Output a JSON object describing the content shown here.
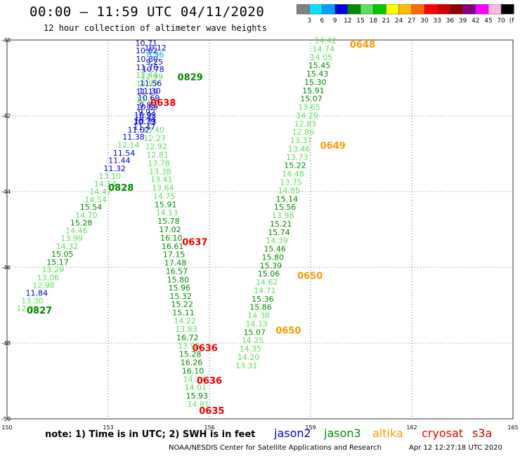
{
  "header": {
    "title": "00:00 – 11:59 UTC 04/11/2020",
    "subtitle": "12 hour collection of altimeter wave heights"
  },
  "colorbar": {
    "colors": [
      "#808080",
      "#00e5ff",
      "#00a0ff",
      "#0000e0",
      "#008b00",
      "#5de05d",
      "#00c800",
      "#ffff00",
      "#ffbb00",
      "#ff6a00",
      "#ff0000",
      "#c80000",
      "#8b0000",
      "#800080",
      "#ff00ff",
      "#ffb6e6",
      "#000000"
    ],
    "labels": [
      "3",
      "6",
      "9",
      "12",
      "15",
      "18",
      "21",
      "24",
      "27",
      "30",
      "33",
      "36",
      "39",
      "42",
      "45",
      "70",
      "(ft)"
    ]
  },
  "chart_data": {
    "type": "scatter",
    "xlim": [
      150,
      165
    ],
    "ylim": [
      -50,
      -40
    ],
    "xticks": [
      150,
      153,
      156,
      159,
      162,
      165
    ],
    "yticks": [
      -40,
      -42,
      -44,
      -46,
      -48,
      -50
    ],
    "xtick_labels": [
      "150",
      "153",
      "156",
      "159",
      "162",
      "165"
    ],
    "ytick_labels": [
      "-40",
      "-42",
      "-44",
      "-46",
      "-48",
      "-50"
    ],
    "grid": true,
    "legend": [
      {
        "name": "jason2",
        "color": "#0000cc"
      },
      {
        "name": "jason3",
        "color": "#008b00"
      },
      {
        "name": "altika",
        "color": "#ff9900"
      },
      {
        "name": "cryosat",
        "color": "#ee0000"
      },
      {
        "name": "s3a",
        "color": "#cc0000"
      }
    ],
    "points": [
      {
        "lon": 154.13,
        "lat": -40.08,
        "v": "10.71",
        "c": "#0000cc"
      },
      {
        "lon": 154.14,
        "lat": -40.28,
        "v": "10.62",
        "c": "#0000cc"
      },
      {
        "lon": 154.15,
        "lat": -40.5,
        "v": "10.80",
        "c": "#0000cc"
      },
      {
        "lon": 154.15,
        "lat": -40.72,
        "v": "11.76",
        "c": "#0000cc"
      },
      {
        "lon": 154.14,
        "lat": -40.93,
        "v": "12.44",
        "c": "#5de05d"
      },
      {
        "lon": 154.15,
        "lat": -41.15,
        "v": "14.93",
        "c": "#5de05d"
      },
      {
        "lon": 154.15,
        "lat": -41.36,
        "v": "11.19",
        "c": "#0000cc"
      },
      {
        "lon": 154.15,
        "lat": -41.57,
        "v": "12.34",
        "c": "#5de05d"
      },
      {
        "lon": 154.15,
        "lat": -41.77,
        "v": "10.89",
        "c": "#0000cc"
      },
      {
        "lon": 154.1,
        "lat": -41.98,
        "v": "10.92",
        "c": "#0000cc"
      },
      {
        "lon": 154.1,
        "lat": -42.15,
        "v": "10.33",
        "c": "#0000cc"
      },
      {
        "lon": 154.07,
        "lat": -42.3,
        "v": "11.47",
        "c": "#0000cc"
      },
      {
        "lon": 154.4,
        "lat": -40.2,
        "v": "10.12",
        "c": "#0000cc"
      },
      {
        "lon": 154.4,
        "lat": -40.38,
        "v": "8.96",
        "c": "#00a0ff"
      },
      {
        "lon": 154.37,
        "lat": -40.57,
        "v": "9.25",
        "c": "#0000cc"
      },
      {
        "lon": 154.33,
        "lat": -40.77,
        "v": "10.78",
        "c": "#0000cc"
      },
      {
        "lon": 154.3,
        "lat": -40.96,
        "v": "12.99",
        "c": "#5de05d"
      },
      {
        "lon": 154.26,
        "lat": -41.14,
        "v": "11.56",
        "c": "#0000cc"
      },
      {
        "lon": 154.23,
        "lat": -41.34,
        "v": "11.30",
        "c": "#0000cc"
      },
      {
        "lon": 154.2,
        "lat": -41.53,
        "v": "10.69",
        "c": "#0000cc"
      },
      {
        "lon": 154.17,
        "lat": -41.72,
        "v": "9.83",
        "c": "#0000cc"
      },
      {
        "lon": 154.14,
        "lat": -41.9,
        "v": "9.92",
        "c": "#0000cc"
      },
      {
        "lon": 154.1,
        "lat": -42.05,
        "v": "10.42",
        "c": "#0000cc"
      },
      {
        "lon": 154.07,
        "lat": -42.15,
        "v": "10.79",
        "c": "#0000cc"
      },
      {
        "lon": 153.9,
        "lat": -42.37,
        "v": "11.02",
        "c": "#0000cc"
      },
      {
        "lon": 153.75,
        "lat": -42.56,
        "v": "11.38",
        "c": "#0000cc"
      },
      {
        "lon": 153.6,
        "lat": -42.77,
        "v": "12.14",
        "c": "#5de05d"
      },
      {
        "lon": 153.47,
        "lat": -42.98,
        "v": "11.54",
        "c": "#0000cc"
      },
      {
        "lon": 153.33,
        "lat": -43.18,
        "v": "11.44",
        "c": "#0000cc"
      },
      {
        "lon": 153.19,
        "lat": -43.39,
        "v": "11.32",
        "c": "#0000cc"
      },
      {
        "lon": 153.05,
        "lat": -43.59,
        "v": "13.10",
        "c": "#5de05d"
      },
      {
        "lon": 152.91,
        "lat": -43.8,
        "v": "14.14",
        "c": "#5de05d"
      },
      {
        "lon": 152.77,
        "lat": -44.0,
        "v": "14.47",
        "c": "#5de05d"
      },
      {
        "lon": 152.63,
        "lat": -44.21,
        "v": "14.54",
        "c": "#5de05d"
      },
      {
        "lon": 152.49,
        "lat": -44.41,
        "v": "15.54",
        "c": "#008b00"
      },
      {
        "lon": 152.35,
        "lat": -44.62,
        "v": "14.70",
        "c": "#5de05d"
      },
      {
        "lon": 152.2,
        "lat": -44.82,
        "v": "15.28",
        "c": "#008b00"
      },
      {
        "lon": 152.06,
        "lat": -45.03,
        "v": "14.46",
        "c": "#5de05d"
      },
      {
        "lon": 151.92,
        "lat": -45.23,
        "v": "13.99",
        "c": "#5de05d"
      },
      {
        "lon": 151.78,
        "lat": -45.44,
        "v": "14.32",
        "c": "#5de05d"
      },
      {
        "lon": 151.64,
        "lat": -45.65,
        "v": "15.05",
        "c": "#008b00"
      },
      {
        "lon": 151.5,
        "lat": -45.86,
        "v": "15.17",
        "c": "#008b00"
      },
      {
        "lon": 151.36,
        "lat": -46.06,
        "v": "13.29",
        "c": "#5de05d"
      },
      {
        "lon": 151.22,
        "lat": -46.27,
        "v": "13.06",
        "c": "#5de05d"
      },
      {
        "lon": 151.08,
        "lat": -46.47,
        "v": "12.98",
        "c": "#5de05d"
      },
      {
        "lon": 150.88,
        "lat": -46.68,
        "v": "11.84",
        "c": "#0000cc"
      },
      {
        "lon": 150.75,
        "lat": -46.88,
        "v": "13.30",
        "c": "#5de05d"
      },
      {
        "lon": 150.61,
        "lat": -47.08,
        "v": "12.35",
        "c": "#5de05d"
      },
      {
        "lon": 154.34,
        "lat": -42.37,
        "v": "13.40",
        "c": "#5de05d"
      },
      {
        "lon": 154.38,
        "lat": -42.59,
        "v": "12.27",
        "c": "#5de05d"
      },
      {
        "lon": 154.42,
        "lat": -42.81,
        "v": "12.92",
        "c": "#5de05d"
      },
      {
        "lon": 154.46,
        "lat": -43.03,
        "v": "12.81",
        "c": "#5de05d"
      },
      {
        "lon": 154.5,
        "lat": -43.25,
        "v": "13.78",
        "c": "#5de05d"
      },
      {
        "lon": 154.54,
        "lat": -43.47,
        "v": "13.38",
        "c": "#5de05d"
      },
      {
        "lon": 154.58,
        "lat": -43.68,
        "v": "13.41",
        "c": "#5de05d"
      },
      {
        "lon": 154.62,
        "lat": -43.9,
        "v": "13.64",
        "c": "#5de05d"
      },
      {
        "lon": 154.66,
        "lat": -44.12,
        "v": "14.75",
        "c": "#5de05d"
      },
      {
        "lon": 154.7,
        "lat": -44.34,
        "v": "15.91",
        "c": "#008b00"
      },
      {
        "lon": 154.74,
        "lat": -44.56,
        "v": "14.13",
        "c": "#5de05d"
      },
      {
        "lon": 154.79,
        "lat": -44.78,
        "v": "15.78",
        "c": "#008b00"
      },
      {
        "lon": 154.83,
        "lat": -45.0,
        "v": "17.02",
        "c": "#008b00"
      },
      {
        "lon": 154.87,
        "lat": -45.22,
        "v": "16.10",
        "c": "#008b00"
      },
      {
        "lon": 154.91,
        "lat": -45.44,
        "v": "16.61",
        "c": "#008b00"
      },
      {
        "lon": 154.95,
        "lat": -45.66,
        "v": "17.15",
        "c": "#008b00"
      },
      {
        "lon": 154.99,
        "lat": -45.88,
        "v": "17.48",
        "c": "#008b00"
      },
      {
        "lon": 155.03,
        "lat": -46.1,
        "v": "16.57",
        "c": "#008b00"
      },
      {
        "lon": 155.07,
        "lat": -46.32,
        "v": "15.80",
        "c": "#008b00"
      },
      {
        "lon": 155.11,
        "lat": -46.54,
        "v": "15.96",
        "c": "#008b00"
      },
      {
        "lon": 155.15,
        "lat": -46.76,
        "v": "15.32",
        "c": "#008b00"
      },
      {
        "lon": 155.19,
        "lat": -46.97,
        "v": "15.22",
        "c": "#008b00"
      },
      {
        "lon": 155.23,
        "lat": -47.19,
        "v": "15.11",
        "c": "#008b00"
      },
      {
        "lon": 155.27,
        "lat": -47.41,
        "v": "14.22",
        "c": "#5de05d"
      },
      {
        "lon": 155.31,
        "lat": -47.63,
        "v": "13.83",
        "c": "#5de05d"
      },
      {
        "lon": 155.35,
        "lat": -47.85,
        "v": "16.72",
        "c": "#008b00"
      },
      {
        "lon": 155.39,
        "lat": -48.07,
        "v": "13.98",
        "c": "#5de05d"
      },
      {
        "lon": 155.43,
        "lat": -48.29,
        "v": "15.28",
        "c": "#008b00"
      },
      {
        "lon": 155.47,
        "lat": -48.51,
        "v": "16.26",
        "c": "#008b00"
      },
      {
        "lon": 155.51,
        "lat": -48.73,
        "v": "16.10",
        "c": "#008b00"
      },
      {
        "lon": 155.55,
        "lat": -48.95,
        "v": "14.74",
        "c": "#5de05d"
      },
      {
        "lon": 155.59,
        "lat": -49.17,
        "v": "14.01",
        "c": "#5de05d"
      },
      {
        "lon": 155.63,
        "lat": -49.39,
        "v": "15.93",
        "c": "#008b00"
      },
      {
        "lon": 155.67,
        "lat": -49.61,
        "v": "14.81",
        "c": "#5de05d"
      },
      {
        "lon": 159.44,
        "lat": -40.01,
        "v": "14.42",
        "c": "#5de05d"
      },
      {
        "lon": 159.38,
        "lat": -40.23,
        "v": "14.74",
        "c": "#5de05d"
      },
      {
        "lon": 159.32,
        "lat": -40.45,
        "v": "14.05",
        "c": "#5de05d"
      },
      {
        "lon": 159.26,
        "lat": -40.67,
        "v": "15.45",
        "c": "#008b00"
      },
      {
        "lon": 159.2,
        "lat": -40.89,
        "v": "15.43",
        "c": "#008b00"
      },
      {
        "lon": 159.14,
        "lat": -41.11,
        "v": "15.30",
        "c": "#008b00"
      },
      {
        "lon": 159.08,
        "lat": -41.33,
        "v": "15.91",
        "c": "#008b00"
      },
      {
        "lon": 159.02,
        "lat": -41.55,
        "v": "15.07",
        "c": "#008b00"
      },
      {
        "lon": 158.96,
        "lat": -41.77,
        "v": "13.65",
        "c": "#5de05d"
      },
      {
        "lon": 158.9,
        "lat": -41.99,
        "v": "14.29",
        "c": "#5de05d"
      },
      {
        "lon": 158.84,
        "lat": -42.21,
        "v": "12.83",
        "c": "#5de05d"
      },
      {
        "lon": 158.78,
        "lat": -42.43,
        "v": "12.86",
        "c": "#5de05d"
      },
      {
        "lon": 158.72,
        "lat": -42.65,
        "v": "13.37",
        "c": "#5de05d"
      },
      {
        "lon": 158.66,
        "lat": -42.87,
        "v": "13.46",
        "c": "#5de05d"
      },
      {
        "lon": 158.6,
        "lat": -43.09,
        "v": "13.73",
        "c": "#5de05d"
      },
      {
        "lon": 158.54,
        "lat": -43.31,
        "v": "15.22",
        "c": "#008b00"
      },
      {
        "lon": 158.48,
        "lat": -43.53,
        "v": "14.48",
        "c": "#5de05d"
      },
      {
        "lon": 158.42,
        "lat": -43.75,
        "v": "13.75",
        "c": "#5de05d"
      },
      {
        "lon": 158.36,
        "lat": -43.97,
        "v": "14.85",
        "c": "#5de05d"
      },
      {
        "lon": 158.3,
        "lat": -44.19,
        "v": "15.14",
        "c": "#008b00"
      },
      {
        "lon": 158.24,
        "lat": -44.41,
        "v": "15.56",
        "c": "#008b00"
      },
      {
        "lon": 158.18,
        "lat": -44.63,
        "v": "13.98",
        "c": "#5de05d"
      },
      {
        "lon": 158.12,
        "lat": -44.85,
        "v": "15.21",
        "c": "#008b00"
      },
      {
        "lon": 158.06,
        "lat": -45.07,
        "v": "15.74",
        "c": "#008b00"
      },
      {
        "lon": 158.0,
        "lat": -45.29,
        "v": "14.39",
        "c": "#5de05d"
      },
      {
        "lon": 157.94,
        "lat": -45.51,
        "v": "15.46",
        "c": "#008b00"
      },
      {
        "lon": 157.88,
        "lat": -45.73,
        "v": "15.80",
        "c": "#008b00"
      },
      {
        "lon": 157.82,
        "lat": -45.95,
        "v": "15.39",
        "c": "#008b00"
      },
      {
        "lon": 157.76,
        "lat": -46.17,
        "v": "15.06",
        "c": "#008b00"
      },
      {
        "lon": 157.7,
        "lat": -46.39,
        "v": "14.62",
        "c": "#5de05d"
      },
      {
        "lon": 157.64,
        "lat": -46.61,
        "v": "14.71",
        "c": "#5de05d"
      },
      {
        "lon": 157.58,
        "lat": -46.83,
        "v": "15.36",
        "c": "#008b00"
      },
      {
        "lon": 157.52,
        "lat": -47.05,
        "v": "15.86",
        "c": "#008b00"
      },
      {
        "lon": 157.46,
        "lat": -47.27,
        "v": "14.38",
        "c": "#5de05d"
      },
      {
        "lon": 157.4,
        "lat": -47.49,
        "v": "14.13",
        "c": "#5de05d"
      },
      {
        "lon": 157.34,
        "lat": -47.71,
        "v": "15.07",
        "c": "#008b00"
      },
      {
        "lon": 157.28,
        "lat": -47.93,
        "v": "14.25",
        "c": "#5de05d"
      },
      {
        "lon": 157.22,
        "lat": -48.15,
        "v": "14.35",
        "c": "#5de05d"
      },
      {
        "lon": 157.16,
        "lat": -48.37,
        "v": "14.20",
        "c": "#5de05d"
      },
      {
        "lon": 157.1,
        "lat": -48.59,
        "v": "13.31",
        "c": "#5de05d"
      }
    ],
    "time_labels": [
      {
        "lon": 155.43,
        "lat": -40.97,
        "t": "0829",
        "c": "#008b00"
      },
      {
        "lon": 154.63,
        "lat": -41.65,
        "t": "0638",
        "c": "#ee0000"
      },
      {
        "lon": 153.38,
        "lat": -43.89,
        "t": "0828",
        "c": "#008b00"
      },
      {
        "lon": 155.57,
        "lat": -45.32,
        "t": "0637",
        "c": "#ee0000"
      },
      {
        "lon": 150.96,
        "lat": -47.13,
        "t": "0827",
        "c": "#008b00"
      },
      {
        "lon": 155.87,
        "lat": -48.12,
        "t": "0636",
        "c": "#ee0000"
      },
      {
        "lon": 156.0,
        "lat": -48.98,
        "t": "0636",
        "c": "#ee0000"
      },
      {
        "lon": 156.07,
        "lat": -49.78,
        "t": "0635",
        "c": "#ee0000"
      },
      {
        "lon": 160.54,
        "lat": -40.11,
        "t": "0648",
        "c": "#ff9900"
      },
      {
        "lon": 159.66,
        "lat": -42.78,
        "t": "0649",
        "c": "#ff9900"
      },
      {
        "lon": 158.98,
        "lat": -46.21,
        "t": "0650",
        "c": "#ff9900"
      },
      {
        "lon": 158.34,
        "lat": -47.66,
        "t": "0650",
        "c": "#ff9900"
      }
    ]
  },
  "notes": {
    "note": "note:  1) Time is in UTC;  2) SWH is in feet",
    "sat_jason2": "jason2",
    "sat_jason3": "jason3",
    "sat_altika": "altika",
    "sat_cryosat": "cryosat",
    "sat_s3a": "s3a",
    "footer": "NOAA/NESDIS Center for Satellite Applications and Research",
    "timestamp": "Apr 12 12:27:18 UTC 2020"
  }
}
